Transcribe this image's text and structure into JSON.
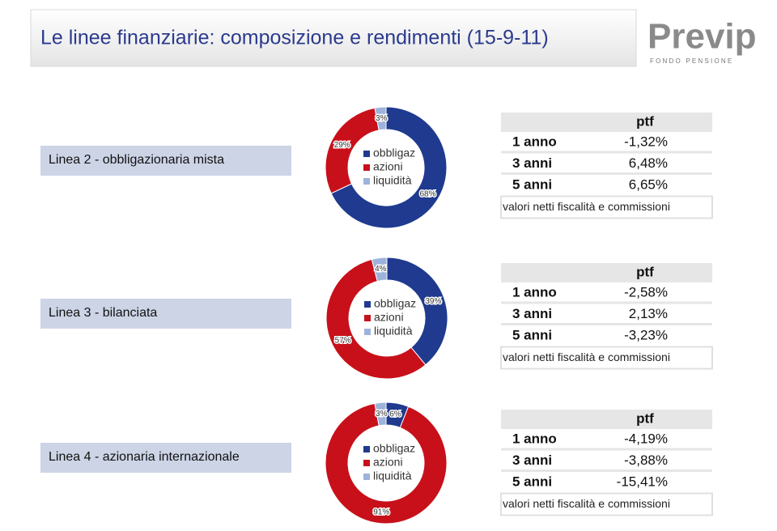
{
  "title": "Le linee finanziarie: composizione e rendimenti (15-9-11)",
  "logo": {
    "name": "Previp",
    "subtitle": "F O N D O   P E N S I O N E"
  },
  "chart_data": [
    {
      "type": "donut",
      "title": "Linea 2 - obbligazionaria mista",
      "categories": [
        "obbligaz",
        "azioni",
        "liquidità"
      ],
      "values": [
        68,
        29,
        3
      ],
      "value_labels": [
        "68%",
        "29%",
        "3%"
      ],
      "colors": [
        "#1f3a8f",
        "#c8101a",
        "#9db3db"
      ]
    },
    {
      "type": "donut",
      "title": "Linea 3 - bilanciata",
      "categories": [
        "obbligaz",
        "azioni",
        "liquidità"
      ],
      "values": [
        39,
        57,
        4
      ],
      "value_labels": [
        "39%",
        "57%",
        "4%"
      ],
      "colors": [
        "#1f3a8f",
        "#c8101a",
        "#9db3db"
      ]
    },
    {
      "type": "donut",
      "title": "Linea 4 - azionaria internazionale",
      "categories": [
        "obbligaz",
        "azioni",
        "liquidità"
      ],
      "values": [
        6,
        91,
        3
      ],
      "value_labels": [
        "6%",
        "91%",
        "3%"
      ],
      "colors": [
        "#1f3a8f",
        "#c8101a",
        "#9db3db"
      ]
    }
  ],
  "tables": [
    {
      "header": "ptf",
      "rows": [
        [
          "1 anno",
          "-1,32%"
        ],
        [
          "3 anni",
          "6,48%"
        ],
        [
          "5 anni",
          "6,65%"
        ]
      ],
      "note": "valori netti fiscalità e commissioni"
    },
    {
      "header": "ptf",
      "rows": [
        [
          "1 anno",
          "-2,58%"
        ],
        [
          "3 anni",
          "2,13%"
        ],
        [
          "5 anni",
          "-3,23%"
        ]
      ],
      "note": "valori netti fiscalità e commissioni"
    },
    {
      "header": "ptf",
      "rows": [
        [
          "1 anno",
          "-4,19%"
        ],
        [
          "3 anni",
          "-3,88%"
        ],
        [
          "5 anni",
          "-15,41%"
        ]
      ],
      "note": "valori netti fiscalità e commissioni"
    }
  ]
}
